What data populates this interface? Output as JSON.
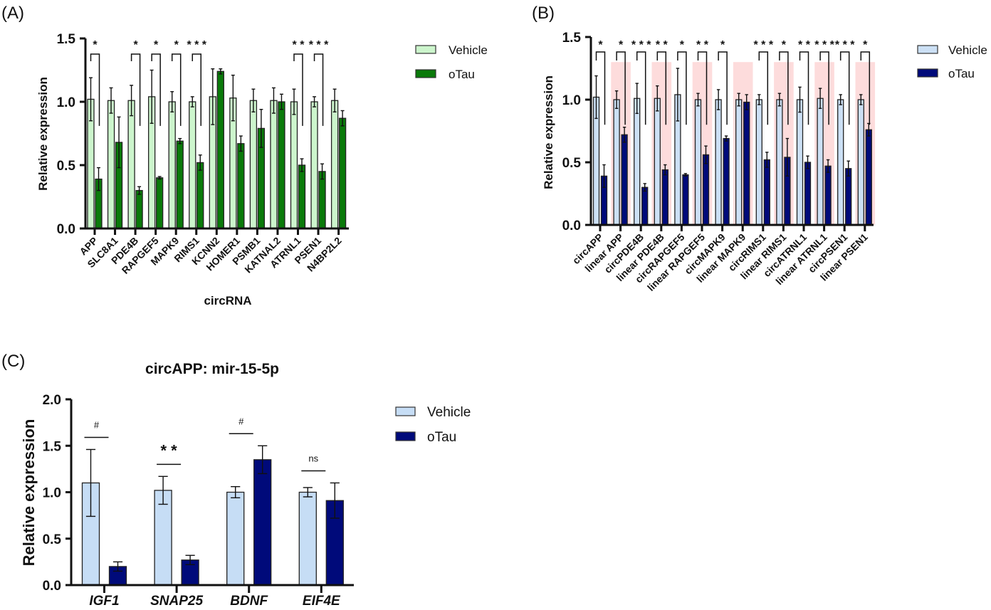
{
  "chart_data": [
    {
      "panel": "(A)",
      "type": "bar",
      "title": "",
      "xlabel": "circRNA",
      "ylabel": "Relative expression",
      "ylim": [
        0,
        1.5
      ],
      "yticks": [
        "0.0",
        "0.5",
        "1.0",
        "1.5"
      ],
      "legend_position": "top-right",
      "categories": [
        "APP",
        "SLC8A1",
        "PDE4B",
        "RAPGEF5",
        "MAPK9",
        "RIMS1",
        "KCNN2",
        "HOMER1",
        "PSMB1",
        "KATNAL2",
        "ATRNL1",
        "PSEN1",
        "N4BP2L2"
      ],
      "series": [
        {
          "name": "Vehicle",
          "color": "#ccf5cc",
          "values": [
            1.02,
            1.01,
            1.01,
            1.04,
            1.0,
            1.0,
            1.04,
            1.03,
            1.01,
            1.01,
            1.0,
            1.0,
            1.01
          ],
          "errors": [
            0.17,
            0.1,
            0.12,
            0.21,
            0.08,
            0.04,
            0.22,
            0.18,
            0.09,
            0.1,
            0.1,
            0.04,
            0.09
          ]
        },
        {
          "name": "oTau",
          "color": "#0a7a0a",
          "values": [
            0.39,
            0.68,
            0.3,
            0.4,
            0.69,
            0.52,
            1.24,
            0.67,
            0.79,
            1.0,
            0.5,
            0.45,
            0.87
          ],
          "errors": [
            0.09,
            0.2,
            0.03,
            0.01,
            0.02,
            0.06,
            0.02,
            0.06,
            0.15,
            0.06,
            0.05,
            0.06,
            0.06
          ]
        }
      ],
      "significance": [
        {
          "category": "APP",
          "label": "*"
        },
        {
          "category": "PDE4B",
          "label": "*"
        },
        {
          "category": "RAPGEF5",
          "label": "*"
        },
        {
          "category": "MAPK9",
          "label": "*"
        },
        {
          "category": "RIMS1",
          "label": "***"
        },
        {
          "category": "ATRNL1",
          "label": "**"
        },
        {
          "category": "PSEN1",
          "label": "***"
        }
      ]
    },
    {
      "panel": "(B)",
      "type": "bar",
      "title": "",
      "xlabel": "",
      "ylabel": "Relative expression",
      "ylim": [
        0,
        1.5
      ],
      "yticks": [
        "0.0",
        "0.5",
        "1.0",
        "1.5"
      ],
      "legend_position": "top-right",
      "highlight_color": "#fddcdc",
      "categories": [
        "circAPP",
        "linear APP",
        "circPDE4B",
        "linear PDE4B",
        "circRAPGEF5",
        "linear RAPGEF5",
        "circMAPK9",
        "linear MAPK9",
        "circRIMS1",
        "linear RIMS1",
        "circATRNL1",
        "linear ATRNL1",
        "circPSEN1",
        "linear PSEN1"
      ],
      "highlighted": [
        false,
        true,
        false,
        true,
        false,
        true,
        false,
        true,
        false,
        true,
        false,
        true,
        false,
        true
      ],
      "series": [
        {
          "name": "Vehicle",
          "color": "#cce0f5",
          "values": [
            1.02,
            1.0,
            1.01,
            1.01,
            1.04,
            1.0,
            1.0,
            1.0,
            1.0,
            1.0,
            1.0,
            1.01,
            1.0,
            1.0
          ],
          "errors": [
            0.17,
            0.07,
            0.12,
            0.1,
            0.21,
            0.05,
            0.08,
            0.05,
            0.04,
            0.05,
            0.1,
            0.08,
            0.04,
            0.04
          ]
        },
        {
          "name": "oTau",
          "color": "#000a7a",
          "values": [
            0.39,
            0.72,
            0.3,
            0.44,
            0.4,
            0.56,
            0.69,
            0.98,
            0.52,
            0.54,
            0.5,
            0.47,
            0.45,
            0.76
          ],
          "errors": [
            0.09,
            0.06,
            0.03,
            0.04,
            0.01,
            0.07,
            0.02,
            0.06,
            0.06,
            0.15,
            0.05,
            0.05,
            0.06,
            0.05
          ]
        }
      ],
      "significance": [
        {
          "category": "circAPP",
          "label": "*"
        },
        {
          "category": "linear APP",
          "label": "*"
        },
        {
          "category": "circPDE4B",
          "label": "***"
        },
        {
          "category": "linear PDE4B",
          "label": "**"
        },
        {
          "category": "circRAPGEF5",
          "label": "*"
        },
        {
          "category": "linear RAPGEF5",
          "label": "**"
        },
        {
          "category": "circMAPK9",
          "label": "*"
        },
        {
          "category": "circRIMS1",
          "label": "***"
        },
        {
          "category": "linear RIMS1",
          "label": "*"
        },
        {
          "category": "circATRNL1",
          "label": "**"
        },
        {
          "category": "linear ATRNL1",
          "label": "***"
        },
        {
          "category": "circPSEN1",
          "label": "***"
        },
        {
          "category": "linear PSEN1",
          "label": "*"
        }
      ]
    },
    {
      "panel": "(C)",
      "type": "bar",
      "title": "circAPP: mir-15-5p",
      "xlabel": "",
      "ylabel": "Relative expression",
      "ylim": [
        0,
        2.0
      ],
      "yticks": [
        "0.0",
        "0.5",
        "1.0",
        "1.5",
        "2.0"
      ],
      "legend_position": "top-right",
      "categories": [
        "IGF1",
        "SNAP25",
        "BDNF",
        "EIF4E"
      ],
      "series": [
        {
          "name": "Vehicle",
          "color": "#c6ddf5",
          "values": [
            1.1,
            1.02,
            1.0,
            1.0
          ],
          "errors": [
            0.36,
            0.15,
            0.06,
            0.05
          ]
        },
        {
          "name": "oTau",
          "color": "#000a7a",
          "values": [
            0.2,
            0.27,
            1.35,
            0.91
          ],
          "errors": [
            0.05,
            0.05,
            0.15,
            0.19
          ]
        }
      ],
      "significance": [
        {
          "category": "IGF1",
          "label": "#"
        },
        {
          "category": "SNAP25",
          "label": "**"
        },
        {
          "category": "BDNF",
          "label": "#"
        },
        {
          "category": "EIF4E",
          "label": "ns"
        }
      ]
    }
  ]
}
